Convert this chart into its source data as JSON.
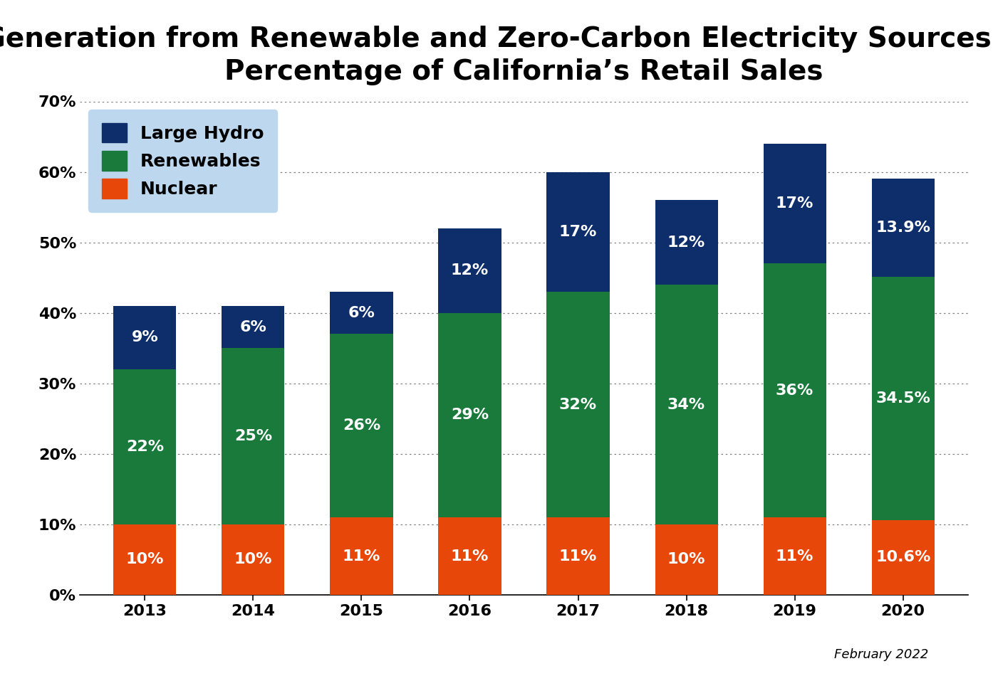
{
  "title": "Generation from Renewable and Zero-Carbon Electricity Sources as a\nPercentage of California’s Retail Sales",
  "years": [
    "2013",
    "2014",
    "2015",
    "2016",
    "2017",
    "2018",
    "2019",
    "2020"
  ],
  "nuclear": [
    10,
    10,
    11,
    11,
    11,
    10,
    11,
    10.6
  ],
  "renewables": [
    22,
    25,
    26,
    29,
    32,
    34,
    36,
    34.5
  ],
  "large_hydro": [
    9,
    6,
    6,
    12,
    17,
    12,
    17,
    13.9
  ],
  "nuclear_labels": [
    "10%",
    "10%",
    "11%",
    "11%",
    "11%",
    "10%",
    "11%",
    "10.6%"
  ],
  "renewables_labels": [
    "22%",
    "25%",
    "26%",
    "29%",
    "32%",
    "34%",
    "36%",
    "34.5%"
  ],
  "hydro_labels": [
    "9%",
    "6%",
    "6%",
    "12%",
    "17%",
    "12%",
    "17%",
    "13.9%"
  ],
  "nuclear_color": "#E8470A",
  "renewables_color": "#1A7A3C",
  "hydro_color": "#0D2D6B",
  "legend_bg_color": "#BDD7EE",
  "background_color": "#FFFFFF",
  "ylim": [
    0,
    70
  ],
  "yticks": [
    0,
    10,
    20,
    30,
    40,
    50,
    60,
    70
  ],
  "ytick_labels": [
    "0%",
    "10%",
    "20%",
    "30%",
    "40%",
    "50%",
    "60%",
    "70%"
  ],
  "footnote": "February 2022",
  "title_fontsize": 28,
  "label_fontsize": 16,
  "tick_fontsize": 16,
  "footnote_fontsize": 13,
  "bar_width": 0.58
}
